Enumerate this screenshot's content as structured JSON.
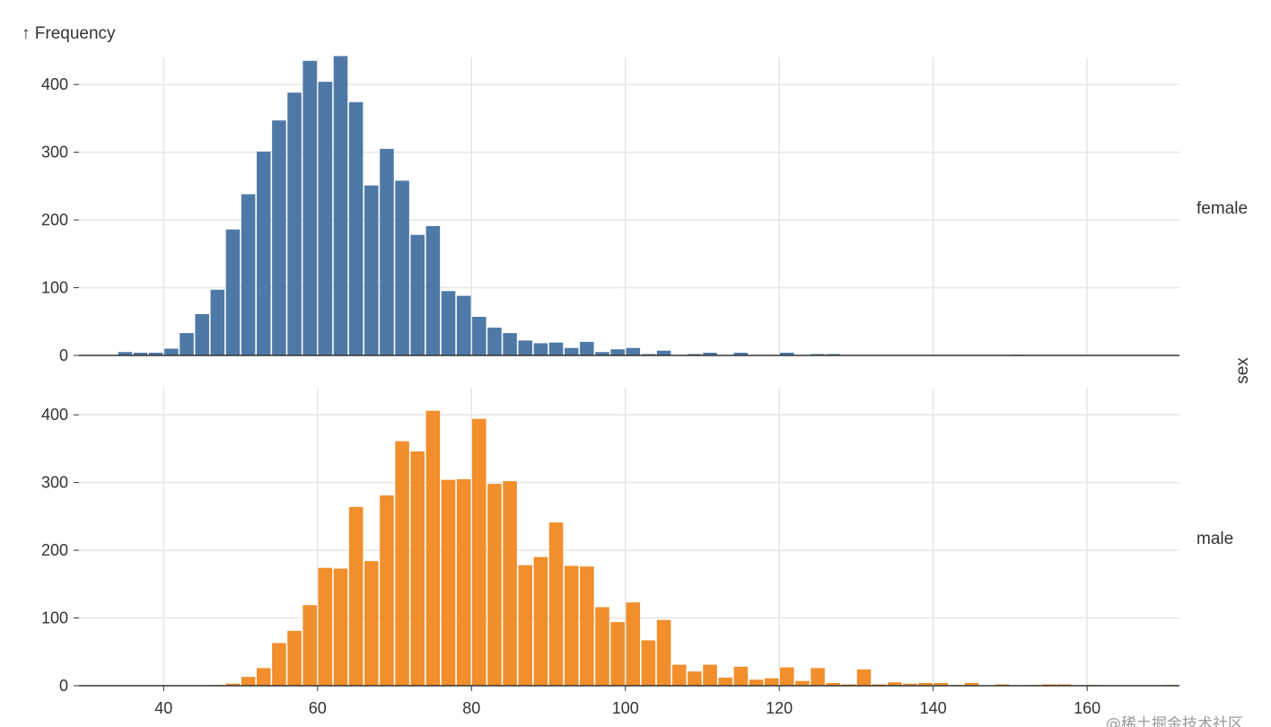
{
  "chart_data": {
    "type": "bar",
    "y_title": "↑ Frequency",
    "facet_axis_label": "sex",
    "x_ticks": [
      40,
      60,
      80,
      100,
      120,
      140,
      160
    ],
    "xlim": [
      29,
      172
    ],
    "ylim": [
      0,
      440
    ],
    "y_ticks": [
      0,
      100,
      200,
      300,
      400
    ],
    "grid": true,
    "bin_width": 2,
    "series": [
      {
        "name": "female",
        "color": "#4e79a7",
        "bins": [
          [
            34,
            5
          ],
          [
            36,
            4
          ],
          [
            38,
            4
          ],
          [
            40,
            10
          ],
          [
            42,
            33
          ],
          [
            44,
            61
          ],
          [
            46,
            97
          ],
          [
            48,
            186
          ],
          [
            50,
            238
          ],
          [
            52,
            301
          ],
          [
            54,
            347
          ],
          [
            56,
            388
          ],
          [
            58,
            435
          ],
          [
            60,
            404
          ],
          [
            62,
            442
          ],
          [
            64,
            374
          ],
          [
            66,
            251
          ],
          [
            68,
            305
          ],
          [
            70,
            258
          ],
          [
            72,
            178
          ],
          [
            74,
            191
          ],
          [
            76,
            95
          ],
          [
            78,
            88
          ],
          [
            80,
            57
          ],
          [
            82,
            41
          ],
          [
            84,
            33
          ],
          [
            86,
            22
          ],
          [
            88,
            18
          ],
          [
            90,
            19
          ],
          [
            92,
            11
          ],
          [
            94,
            20
          ],
          [
            96,
            5
          ],
          [
            98,
            9
          ],
          [
            100,
            11
          ],
          [
            102,
            2
          ],
          [
            104,
            7
          ],
          [
            106,
            0
          ],
          [
            108,
            2
          ],
          [
            110,
            4
          ],
          [
            112,
            0
          ],
          [
            114,
            4
          ],
          [
            116,
            0
          ],
          [
            118,
            0
          ],
          [
            120,
            4
          ],
          [
            122,
            0
          ],
          [
            124,
            2
          ],
          [
            126,
            2
          ],
          [
            128,
            0
          ],
          [
            150,
            1
          ]
        ]
      },
      {
        "name": "male",
        "color": "#f28e2b",
        "bins": [
          [
            46,
            1
          ],
          [
            48,
            3
          ],
          [
            50,
            13
          ],
          [
            52,
            26
          ],
          [
            54,
            63
          ],
          [
            56,
            81
          ],
          [
            58,
            119
          ],
          [
            60,
            174
          ],
          [
            62,
            173
          ],
          [
            64,
            264
          ],
          [
            66,
            184
          ],
          [
            68,
            281
          ],
          [
            70,
            361
          ],
          [
            72,
            346
          ],
          [
            74,
            406
          ],
          [
            76,
            304
          ],
          [
            78,
            305
          ],
          [
            80,
            394
          ],
          [
            82,
            298
          ],
          [
            84,
            302
          ],
          [
            86,
            178
          ],
          [
            88,
            190
          ],
          [
            90,
            241
          ],
          [
            92,
            177
          ],
          [
            94,
            176
          ],
          [
            96,
            116
          ],
          [
            98,
            94
          ],
          [
            100,
            123
          ],
          [
            102,
            67
          ],
          [
            104,
            97
          ],
          [
            106,
            31
          ],
          [
            108,
            21
          ],
          [
            110,
            31
          ],
          [
            112,
            12
          ],
          [
            114,
            28
          ],
          [
            116,
            9
          ],
          [
            118,
            11
          ],
          [
            120,
            27
          ],
          [
            122,
            7
          ],
          [
            124,
            26
          ],
          [
            126,
            4
          ],
          [
            128,
            2
          ],
          [
            130,
            24
          ],
          [
            132,
            2
          ],
          [
            134,
            5
          ],
          [
            136,
            3
          ],
          [
            138,
            4
          ],
          [
            140,
            4
          ],
          [
            142,
            1
          ],
          [
            144,
            4
          ],
          [
            146,
            0
          ],
          [
            148,
            2
          ],
          [
            150,
            0
          ],
          [
            152,
            1
          ],
          [
            154,
            2
          ],
          [
            156,
            2
          ],
          [
            158,
            0
          ],
          [
            160,
            1
          ],
          [
            162,
            0
          ],
          [
            164,
            0
          ],
          [
            166,
            0
          ],
          [
            168,
            0
          ],
          [
            170,
            1
          ]
        ]
      }
    ]
  },
  "watermark": "@稀土掘金技术社区"
}
